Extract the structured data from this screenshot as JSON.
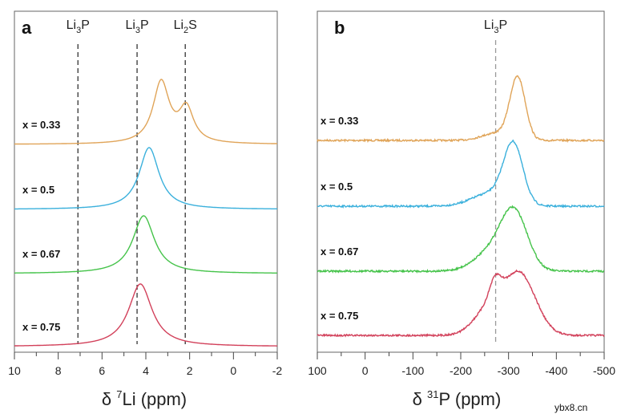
{
  "chart_data": [
    {
      "type": "line",
      "panel_label": "a",
      "xlabel_prefix": "δ ",
      "xlabel_sup": "7",
      "xlabel_rest": "Li (ppm)",
      "xlim": [
        10,
        -2
      ],
      "xticks": [
        "10",
        "8",
        "6",
        "4",
        "2",
        "0",
        "-2"
      ],
      "reference_lines": [
        {
          "label": "Li",
          "sub": "3",
          "label_end": "P",
          "x": 7.1
        },
        {
          "label": "Li",
          "sub": "3",
          "label_end": "P",
          "x": 4.4
        },
        {
          "label": "Li",
          "sub": "2",
          "label_end": "S",
          "x": 2.2
        }
      ],
      "series": [
        {
          "name": "x = 0.33",
          "color": "#e0a458",
          "peaks": [
            {
              "center": 3.3,
              "hwhm": 0.45,
              "height": 1.0
            },
            {
              "center": 2.15,
              "hwhm": 0.4,
              "height": 0.55
            }
          ]
        },
        {
          "name": "x = 0.5",
          "color": "#3ab0dc",
          "peaks": [
            {
              "center": 3.85,
              "hwhm": 0.55,
              "height": 1.0
            }
          ]
        },
        {
          "name": "x = 0.67",
          "color": "#45c34a",
          "peaks": [
            {
              "center": 4.1,
              "hwhm": 0.6,
              "height": 1.0
            }
          ]
        },
        {
          "name": "x = 0.75",
          "color": "#d2405a",
          "peaks": [
            {
              "center": 4.25,
              "hwhm": 0.65,
              "height": 1.0
            }
          ]
        }
      ]
    },
    {
      "type": "line",
      "panel_label": "b",
      "xlabel_prefix": "δ ",
      "xlabel_sup": "31",
      "xlabel_rest": "P (ppm)",
      "xlim": [
        100,
        -500
      ],
      "xticks": [
        "100",
        "0",
        "-100",
        "-200",
        "-300",
        "-400",
        "-500"
      ],
      "reference_lines": [
        {
          "label": "Li",
          "sub": "3",
          "label_end": "P",
          "x": -273
        }
      ],
      "series": [
        {
          "name": "x = 0.33",
          "color": "#e0a458",
          "peaks": [
            {
              "center": -319,
              "width": 16,
              "height": 1.0
            },
            {
              "center": -275,
              "width": 30,
              "height": 0.12
            }
          ]
        },
        {
          "name": "x = 0.5",
          "color": "#3ab0dc",
          "peaks": [
            {
              "center": -310,
              "width": 20,
              "height": 0.95
            },
            {
              "center": -265,
              "width": 40,
              "height": 0.22
            }
          ]
        },
        {
          "name": "x = 0.67",
          "color": "#45c34a",
          "peaks": [
            {
              "center": -312,
              "width": 28,
              "height": 0.95
            },
            {
              "center": -262,
              "width": 35,
              "height": 0.3
            }
          ]
        },
        {
          "name": "x = 0.75",
          "color": "#d2405a",
          "peaks": [
            {
              "center": -322,
              "width": 34,
              "height": 0.95
            },
            {
              "center": -272,
              "width": 12,
              "height": 0.3
            },
            {
              "center": -255,
              "width": 30,
              "height": 0.35
            }
          ]
        }
      ]
    }
  ],
  "watermark": "ybx8.cn"
}
